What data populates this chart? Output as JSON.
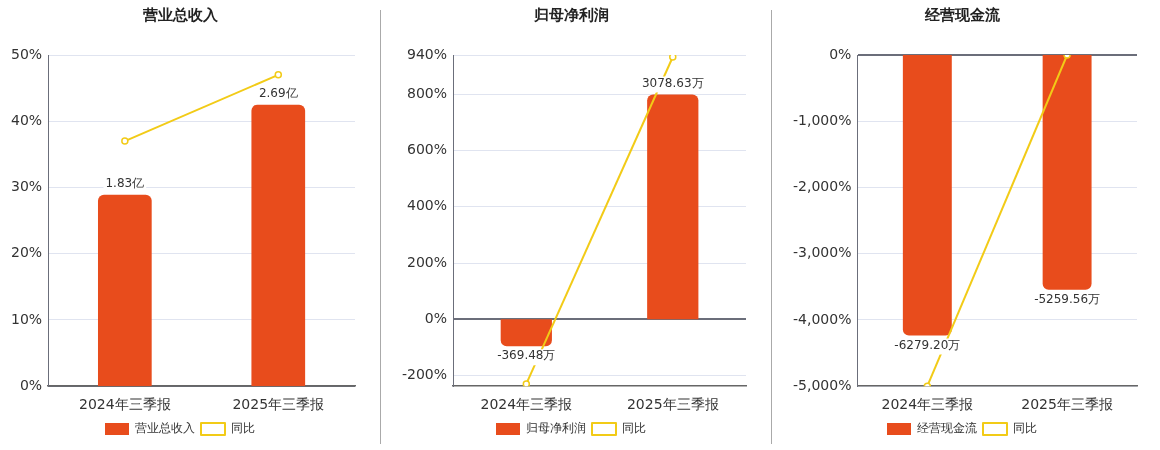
{
  "chart_data": [
    {
      "type": "bar",
      "title": "营业总收入",
      "categories": [
        "2024年三季报",
        "2025年三季报"
      ],
      "series": [
        {
          "name": "营业总收入",
          "axis": "y2",
          "color": "#e84c1c",
          "values": [
            1.83,
            2.69
          ],
          "value_labels": [
            "1.83亿",
            "2.69亿"
          ]
        },
        {
          "name": "同比",
          "type": "line",
          "color": "#f2cb17",
          "values": [
            37,
            47
          ]
        }
      ],
      "ylim": [
        0,
        50
      ],
      "yticks": [
        {
          "value": 0,
          "label": "0%"
        },
        {
          "value": 10,
          "label": "10%"
        },
        {
          "value": 20,
          "label": "20%"
        },
        {
          "value": 30,
          "label": "30%"
        },
        {
          "value": 40,
          "label": "40%"
        },
        {
          "value": 50,
          "label": "50%"
        }
      ],
      "y2lim": [
        0,
        3.165
      ],
      "grid": "y",
      "legend": "bottom",
      "marker": "circle"
    },
    {
      "type": "bar",
      "title": "归母净利润",
      "categories": [
        "2024年三季报",
        "2025年三季报"
      ],
      "series": [
        {
          "name": "归母净利润",
          "axis": "y2",
          "color": "#e84c1c",
          "values": [
            -369.48,
            3078.63
          ],
          "value_labels": [
            "-369.48万",
            "3078.63万"
          ]
        },
        {
          "name": "同比",
          "type": "line",
          "color": "#f2cb17",
          "values": [
            -230,
            933
          ]
        }
      ],
      "ylim": [
        -238,
        940
      ],
      "yticks": [
        {
          "value": -200,
          "label": "-200%"
        },
        {
          "value": 0,
          "label": "0%"
        },
        {
          "value": 200,
          "label": "200%"
        },
        {
          "value": 400,
          "label": "400%"
        },
        {
          "value": 600,
          "label": "600%"
        },
        {
          "value": 800,
          "label": "800%"
        },
        {
          "value": 940,
          "label": "940%"
        }
      ],
      "y2lim": [
        -916,
        3618
      ],
      "grid": "y",
      "legend": "bottom",
      "marker": "circle"
    },
    {
      "type": "bar",
      "title": "经营现金流",
      "categories": [
        "2024年三季报",
        "2025年三季报"
      ],
      "series": [
        {
          "name": "经营现金流",
          "axis": "y2",
          "color": "#e84c1c",
          "values": [
            -6279.2,
            -5259.56
          ],
          "value_labels": [
            "-6279.20万",
            "-5259.56万"
          ]
        },
        {
          "name": "同比",
          "type": "line",
          "color": "#f2cb17",
          "values": [
            -5000,
            0
          ]
        }
      ],
      "ylim": [
        -5000,
        0
      ],
      "yticks": [
        {
          "value": -5000,
          "label": "-5,000%"
        },
        {
          "value": -4000,
          "label": "-4,000%"
        },
        {
          "value": -3000,
          "label": "-3,000%"
        },
        {
          "value": -2000,
          "label": "-2,000%"
        },
        {
          "value": -1000,
          "label": "-1,000%"
        },
        {
          "value": 0,
          "label": "0%"
        }
      ],
      "y2lim": [
        -7417,
        0
      ],
      "grid": "y",
      "legend": "bottom",
      "marker": "circle"
    }
  ]
}
